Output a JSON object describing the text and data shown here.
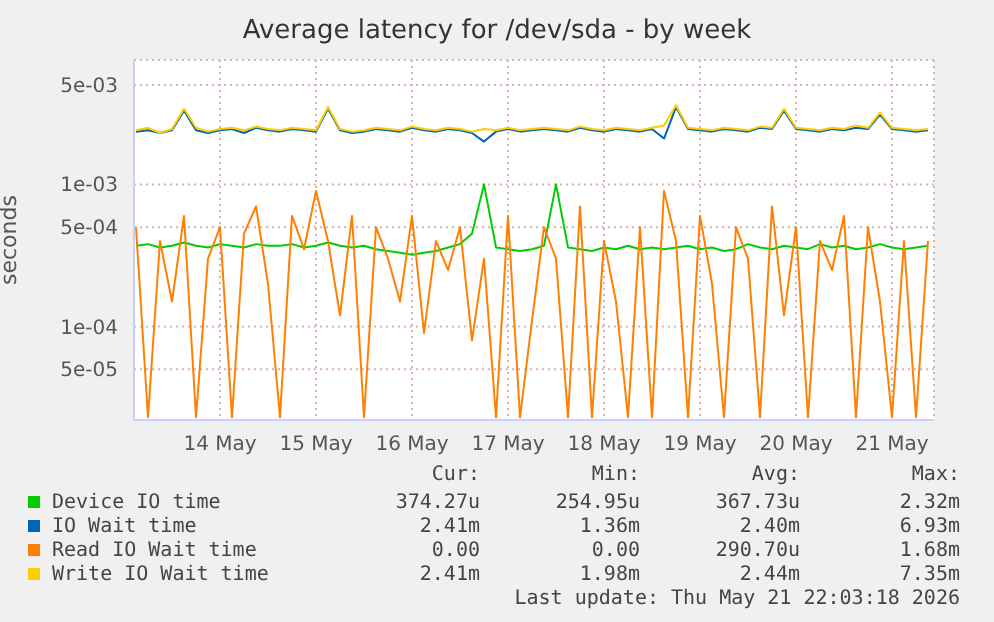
{
  "chart_data": {
    "type": "line",
    "title": "Average latency for /dev/sda - by week",
    "ylabel": "seconds",
    "log": true,
    "grid": true,
    "legend": "bottom",
    "marker": "none",
    "line_style": "solid",
    "xlim": [
      "2026-05-13T14:30",
      "2026-05-21T22:30"
    ],
    "xticks": [
      {
        "value": "2026-05-14T12:00",
        "label": "14 May"
      },
      {
        "value": "2026-05-15T12:00",
        "label": "15 May"
      },
      {
        "value": "2026-05-16T12:00",
        "label": "16 May"
      },
      {
        "value": "2026-05-17T12:00",
        "label": "17 May"
      },
      {
        "value": "2026-05-18T12:00",
        "label": "18 May"
      },
      {
        "value": "2026-05-19T12:00",
        "label": "19 May"
      },
      {
        "value": "2026-05-20T12:00",
        "label": "20 May"
      },
      {
        "value": "2026-05-21T12:00",
        "label": "21 May"
      }
    ],
    "ylim": [
      2.2e-05,
      0.0075
    ],
    "yticks": [
      {
        "value": 5e-05,
        "label": "5e-05"
      },
      {
        "value": 0.0001,
        "label": "1e-04"
      },
      {
        "value": 0.0005,
        "label": "5e-04"
      },
      {
        "value": 0.001,
        "label": "1e-03"
      },
      {
        "value": 0.005,
        "label": "5e-03"
      }
    ],
    "x": [
      "2026-05-13T15:00",
      "2026-05-13T18:00",
      "2026-05-13T21:00",
      "2026-05-14T00:00",
      "2026-05-14T03:00",
      "2026-05-14T06:00",
      "2026-05-14T09:00",
      "2026-05-14T12:00",
      "2026-05-14T15:00",
      "2026-05-14T18:00",
      "2026-05-14T21:00",
      "2026-05-15T00:00",
      "2026-05-15T03:00",
      "2026-05-15T06:00",
      "2026-05-15T09:00",
      "2026-05-15T12:00",
      "2026-05-15T15:00",
      "2026-05-15T18:00",
      "2026-05-15T21:00",
      "2026-05-16T00:00",
      "2026-05-16T03:00",
      "2026-05-16T06:00",
      "2026-05-16T09:00",
      "2026-05-16T12:00",
      "2026-05-16T15:00",
      "2026-05-16T18:00",
      "2026-05-16T21:00",
      "2026-05-17T00:00",
      "2026-05-17T03:00",
      "2026-05-17T06:00",
      "2026-05-17T09:00",
      "2026-05-17T12:00",
      "2026-05-17T15:00",
      "2026-05-17T18:00",
      "2026-05-17T21:00",
      "2026-05-18T00:00",
      "2026-05-18T03:00",
      "2026-05-18T06:00",
      "2026-05-18T09:00",
      "2026-05-18T12:00",
      "2026-05-18T15:00",
      "2026-05-18T18:00",
      "2026-05-18T21:00",
      "2026-05-19T00:00",
      "2026-05-19T03:00",
      "2026-05-19T06:00",
      "2026-05-19T09:00",
      "2026-05-19T12:00",
      "2026-05-19T15:00",
      "2026-05-19T18:00",
      "2026-05-19T21:00",
      "2026-05-20T00:00",
      "2026-05-20T03:00",
      "2026-05-20T06:00",
      "2026-05-20T09:00",
      "2026-05-20T12:00",
      "2026-05-20T15:00",
      "2026-05-20T18:00",
      "2026-05-20T21:00",
      "2026-05-21T00:00",
      "2026-05-21T03:00",
      "2026-05-21T06:00",
      "2026-05-21T09:00",
      "2026-05-21T12:00",
      "2026-05-21T15:00",
      "2026-05-21T18:00",
      "2026-05-21T21:00"
    ],
    "series": [
      {
        "name": "Device IO time",
        "color": "#00cc00",
        "values": [
          0.00037,
          0.00038,
          0.00036,
          0.00037,
          0.00039,
          0.00037,
          0.00036,
          0.00038,
          0.00037,
          0.00036,
          0.00038,
          0.00037,
          0.00037,
          0.00038,
          0.00036,
          0.00037,
          0.00039,
          0.00037,
          0.00036,
          0.00037,
          0.00035,
          0.00034,
          0.00033,
          0.00032,
          0.00033,
          0.00034,
          0.00036,
          0.00038,
          0.00045,
          0.001,
          0.00036,
          0.00035,
          0.00034,
          0.00035,
          0.00037,
          0.001,
          0.00036,
          0.00035,
          0.00034,
          0.00036,
          0.00035,
          0.00037,
          0.00035,
          0.00036,
          0.00035,
          0.00036,
          0.00037,
          0.00035,
          0.00036,
          0.00034,
          0.00035,
          0.00038,
          0.00036,
          0.00035,
          0.00037,
          0.00036,
          0.00035,
          0.00038,
          0.00036,
          0.00037,
          0.00035,
          0.00036,
          0.00038,
          0.00036,
          0.00035,
          0.00036,
          0.00037
        ]
      },
      {
        "name": "IO Wait time",
        "color": "#0066b3",
        "values": [
          0.00235,
          0.0024,
          0.0023,
          0.0024,
          0.0033,
          0.0024,
          0.0023,
          0.0024,
          0.00245,
          0.0023,
          0.0025,
          0.0024,
          0.00235,
          0.00245,
          0.0024,
          0.00235,
          0.0034,
          0.0024,
          0.0023,
          0.00235,
          0.00245,
          0.0024,
          0.00235,
          0.0025,
          0.0024,
          0.00235,
          0.00245,
          0.0024,
          0.0023,
          0.002,
          0.00235,
          0.00245,
          0.00235,
          0.0024,
          0.00245,
          0.0024,
          0.00235,
          0.0025,
          0.0024,
          0.00235,
          0.00245,
          0.0024,
          0.00235,
          0.00245,
          0.0021,
          0.0035,
          0.00245,
          0.0024,
          0.00235,
          0.00245,
          0.0024,
          0.00235,
          0.0025,
          0.00245,
          0.0033,
          0.00245,
          0.0024,
          0.00235,
          0.00245,
          0.0024,
          0.0025,
          0.00245,
          0.0031,
          0.00245,
          0.0024,
          0.00235,
          0.0024
        ]
      },
      {
        "name": "Read IO Wait time",
        "color": "#ff8000",
        "values": [
          0.0005,
          2.3e-05,
          0.0004,
          0.00015,
          0.0006,
          2.3e-05,
          0.0003,
          0.0005,
          2.3e-05,
          0.00045,
          0.0007,
          0.0002,
          2.3e-05,
          0.0006,
          0.00035,
          0.0009,
          0.0004,
          0.00012,
          0.0006,
          2.3e-05,
          0.0005,
          0.0003,
          0.00015,
          0.0006,
          9e-05,
          0.0004,
          0.00025,
          0.0005,
          8e-05,
          0.0003,
          2.3e-05,
          0.0006,
          2.3e-05,
          0.00011,
          0.0005,
          0.0003,
          2.3e-05,
          0.0007,
          2.3e-05,
          0.0004,
          0.00015,
          2.3e-05,
          0.0005,
          2.3e-05,
          0.0009,
          0.0004,
          2.3e-05,
          0.0006,
          0.0002,
          2.3e-05,
          0.0005,
          0.0003,
          2.3e-05,
          0.0007,
          0.00012,
          0.0005,
          2.3e-05,
          0.0004,
          0.00025,
          0.0006,
          2.3e-05,
          0.0005,
          0.00015,
          2.3e-05,
          0.0004,
          2.3e-05,
          0.0004
        ]
      },
      {
        "name": "Write IO Wait time",
        "color": "#ffcc00",
        "values": [
          0.0024,
          0.0025,
          0.0023,
          0.00245,
          0.0034,
          0.0025,
          0.00235,
          0.00245,
          0.0025,
          0.0024,
          0.00255,
          0.00245,
          0.0024,
          0.0025,
          0.00245,
          0.0024,
          0.0035,
          0.00245,
          0.00235,
          0.0024,
          0.0025,
          0.00245,
          0.0024,
          0.00255,
          0.00245,
          0.0024,
          0.0025,
          0.00245,
          0.00235,
          0.00245,
          0.0024,
          0.0025,
          0.0024,
          0.00245,
          0.0025,
          0.00245,
          0.0024,
          0.00255,
          0.00245,
          0.0024,
          0.0025,
          0.00245,
          0.0024,
          0.0025,
          0.0026,
          0.0036,
          0.0025,
          0.00245,
          0.0024,
          0.0025,
          0.00245,
          0.0024,
          0.00255,
          0.0025,
          0.0034,
          0.0025,
          0.00245,
          0.0024,
          0.0025,
          0.00245,
          0.0026,
          0.0025,
          0.0032,
          0.0025,
          0.00245,
          0.0024,
          0.00245
        ]
      }
    ],
    "annotations": [
      "Cur:",
      "Min:",
      "Avg:",
      "Max:",
      "374.27u",
      "254.95u",
      "367.73u",
      "2.32m",
      "2.41m",
      "1.36m",
      "2.40m",
      "6.93m",
      "0.00",
      "0.00",
      "290.70u",
      "1.68m",
      "2.41m",
      "1.98m",
      "2.44m",
      "7.35m",
      "Last update: Thu May 21 22:03:18 2026"
    ]
  }
}
